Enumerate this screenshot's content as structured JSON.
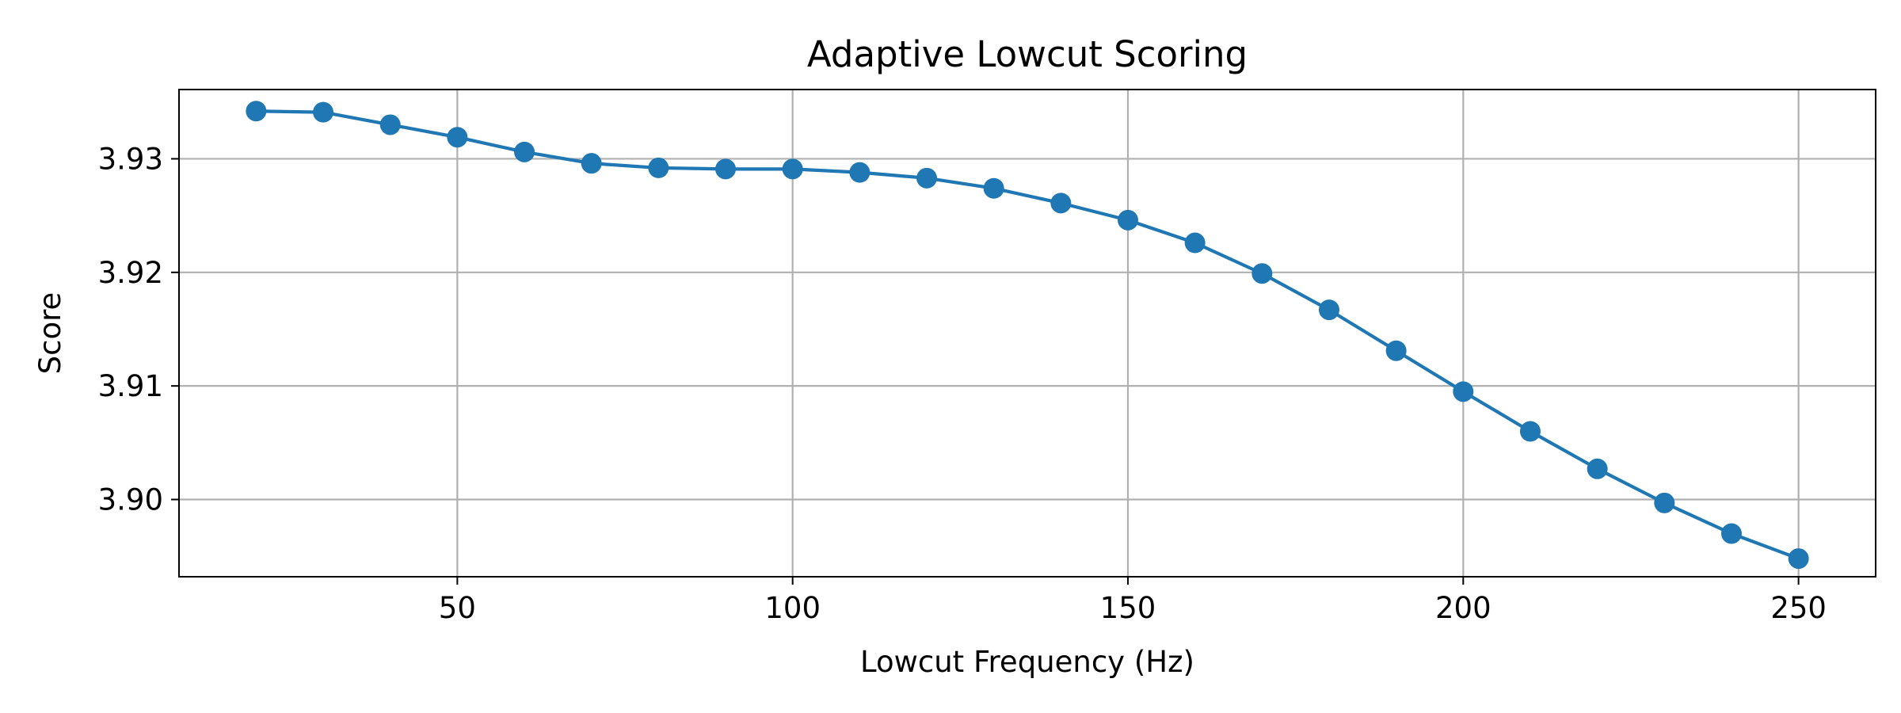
{
  "chart_data": {
    "type": "line",
    "title": "Adaptive Lowcut Scoring",
    "xlabel": "Lowcut Frequency (Hz)",
    "ylabel": "Score",
    "xlim": [
      8.5,
      261.5
    ],
    "ylim": [
      3.8932,
      3.9361
    ],
    "x_ticks": [
      50,
      100,
      150,
      200,
      250
    ],
    "x_tick_labels": [
      "50",
      "100",
      "150",
      "200",
      "250"
    ],
    "y_ticks": [
      3.9,
      3.91,
      3.92,
      3.93
    ],
    "y_tick_labels": [
      "3.90",
      "3.91",
      "3.92",
      "3.93"
    ],
    "grid": true,
    "marker": "circle",
    "series": [
      {
        "color": "#1f77b4",
        "x": [
          20,
          30,
          40,
          50,
          60,
          70,
          80,
          90,
          100,
          110,
          120,
          130,
          140,
          150,
          160,
          170,
          180,
          190,
          200,
          210,
          220,
          230,
          240,
          250
        ],
        "y": [
          3.9342,
          3.9341,
          3.933,
          3.9319,
          3.9306,
          3.9296,
          3.9292,
          3.9291,
          3.9291,
          3.9288,
          3.9283,
          3.9274,
          3.9261,
          3.9246,
          3.9226,
          3.9199,
          3.9167,
          3.9131,
          3.9095,
          3.906,
          3.9027,
          3.8997,
          3.897,
          3.8948
        ]
      }
    ]
  }
}
